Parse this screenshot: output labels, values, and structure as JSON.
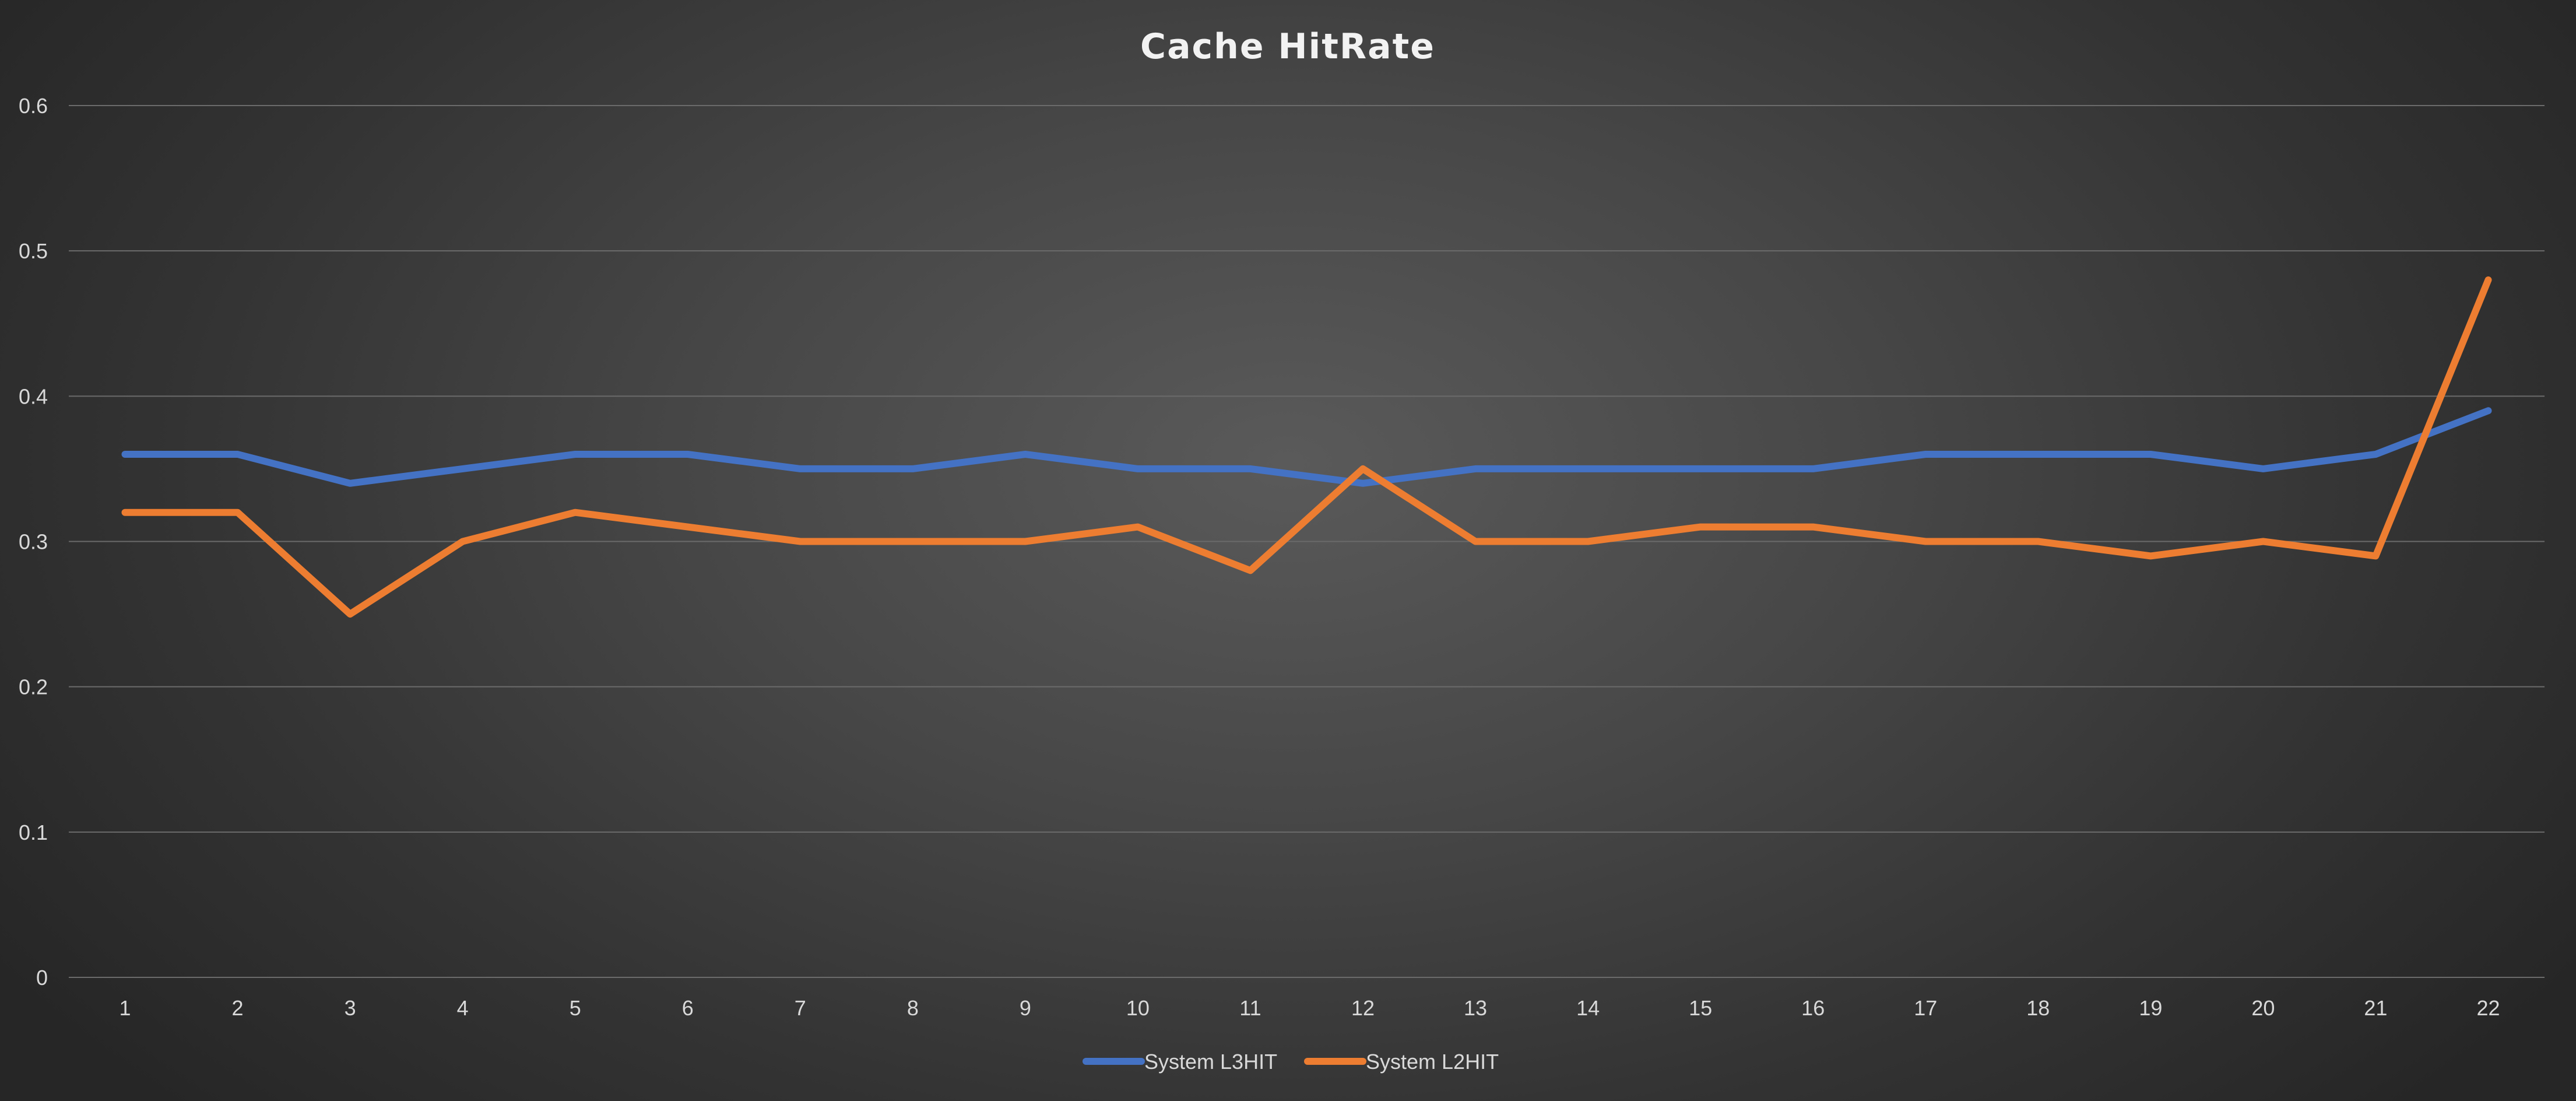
{
  "chart_data": {
    "type": "line",
    "title": "Cache HitRate",
    "xlabel": "",
    "ylabel": "",
    "categories": [
      "1",
      "2",
      "3",
      "4",
      "5",
      "6",
      "7",
      "8",
      "9",
      "10",
      "11",
      "12",
      "13",
      "14",
      "15",
      "16",
      "17",
      "18",
      "19",
      "20",
      "21",
      "22"
    ],
    "ylim": [
      0,
      0.6
    ],
    "yticks": [
      "0",
      "0.1",
      "0.2",
      "0.3",
      "0.4",
      "0.5",
      "0.6"
    ],
    "grid": true,
    "legend_position": "bottom",
    "series": [
      {
        "name": "System L3HIT",
        "color": "#4472c4",
        "values": [
          0.36,
          0.36,
          0.34,
          0.35,
          0.36,
          0.36,
          0.35,
          0.35,
          0.36,
          0.35,
          0.35,
          0.34,
          0.35,
          0.35,
          0.35,
          0.35,
          0.36,
          0.36,
          0.36,
          0.35,
          0.36,
          0.39
        ]
      },
      {
        "name": "System L2HIT",
        "color": "#ed7d31",
        "values": [
          0.32,
          0.32,
          0.25,
          0.3,
          0.32,
          0.31,
          0.3,
          0.3,
          0.3,
          0.31,
          0.28,
          0.35,
          0.3,
          0.3,
          0.31,
          0.31,
          0.3,
          0.3,
          0.29,
          0.3,
          0.29,
          0.48
        ]
      }
    ]
  }
}
